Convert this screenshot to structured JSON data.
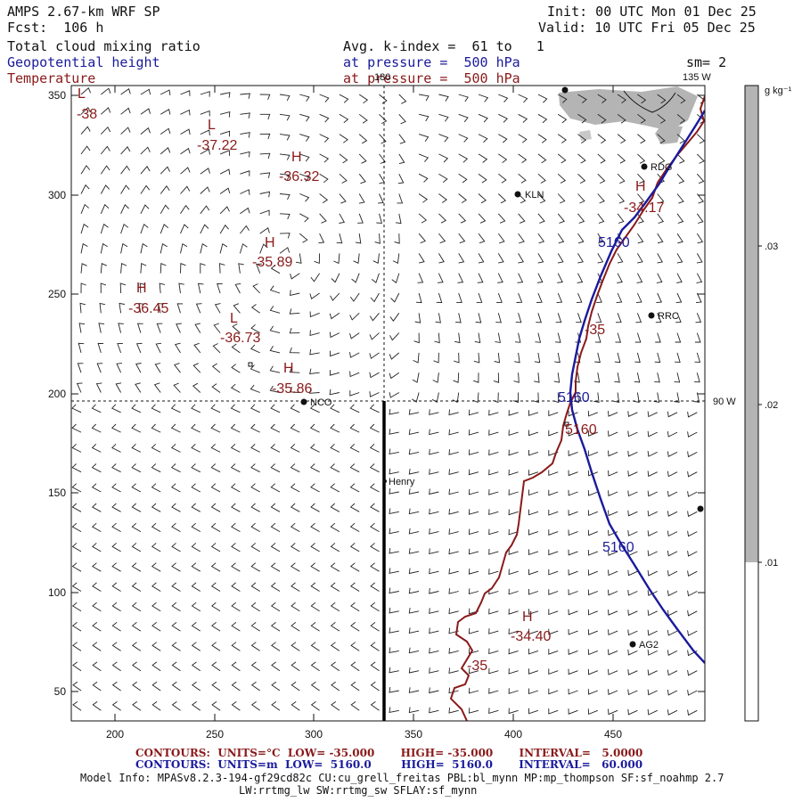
{
  "header": {
    "model": "AMPS 2.67-km WRF SP",
    "forecast": "Fcst:  106 h",
    "init": "Init: 00 UTC Mon 01 Dec 25",
    "valid": "Valid: 10 UTC Fri 05 Dec 25",
    "field1": "Total cloud mixing ratio",
    "field2": "Geopotential height",
    "field3": "Temperature",
    "avg": "Avg. k-index =  61 to   1",
    "pressure1": "at pressure =  500 hPa",
    "pressure2": "at pressure =  500 hPa",
    "smoothing": "sm= 2"
  },
  "map": {
    "xticks": [
      "200",
      "250",
      "300",
      "350",
      "400",
      "450"
    ],
    "yticks": [
      "350",
      "300",
      "250",
      "200",
      "150",
      "100",
      "50"
    ],
    "lon_labels": [
      "180",
      "135 W",
      "90 W"
    ],
    "stations": [
      "RDG",
      "KLN",
      "RRC",
      "NCO",
      "Henry",
      "AG2"
    ],
    "temperature_labels": [
      "L",
      "-38",
      "L",
      "-37.22",
      "H",
      "-36.32",
      "H",
      "-35.89",
      "H",
      "-36.45",
      "L",
      "-36.73",
      "H",
      "-35.86",
      "H",
      "-34.17",
      "-35",
      "-35",
      "H",
      "-34.40"
    ],
    "height_labels": [
      "5160",
      "5160",
      "5160"
    ],
    "colors": {
      "height": "#1a1a9c",
      "temperature": "#8a1a1a",
      "cloud": "#b4b4b4"
    }
  },
  "colorbar": {
    "unit": "g kg⁻¹",
    "ticks": [
      ".03",
      ".02",
      ".01"
    ]
  },
  "footer": {
    "temp_line": "CONTOURS:  UNITS=°C  LOW= -35.000       HIGH= -35.000       INTERVAL=   5.0000",
    "height_line": "CONTOURS:  UNITS=m  LOW=  5160.0        HIGH=  5160.0       INTERVAL=   60.000",
    "info1": "Model Info: MPASv8.2.3-194-gf29cd82c CU:cu_grell_freitas PBL:bl_mynn MP:mp_thompson SF:sf_noahmp 2.7",
    "info2": "LW:rrtmg_lw SW:rrtmg_sw SFLAY:sf_mynn"
  }
}
